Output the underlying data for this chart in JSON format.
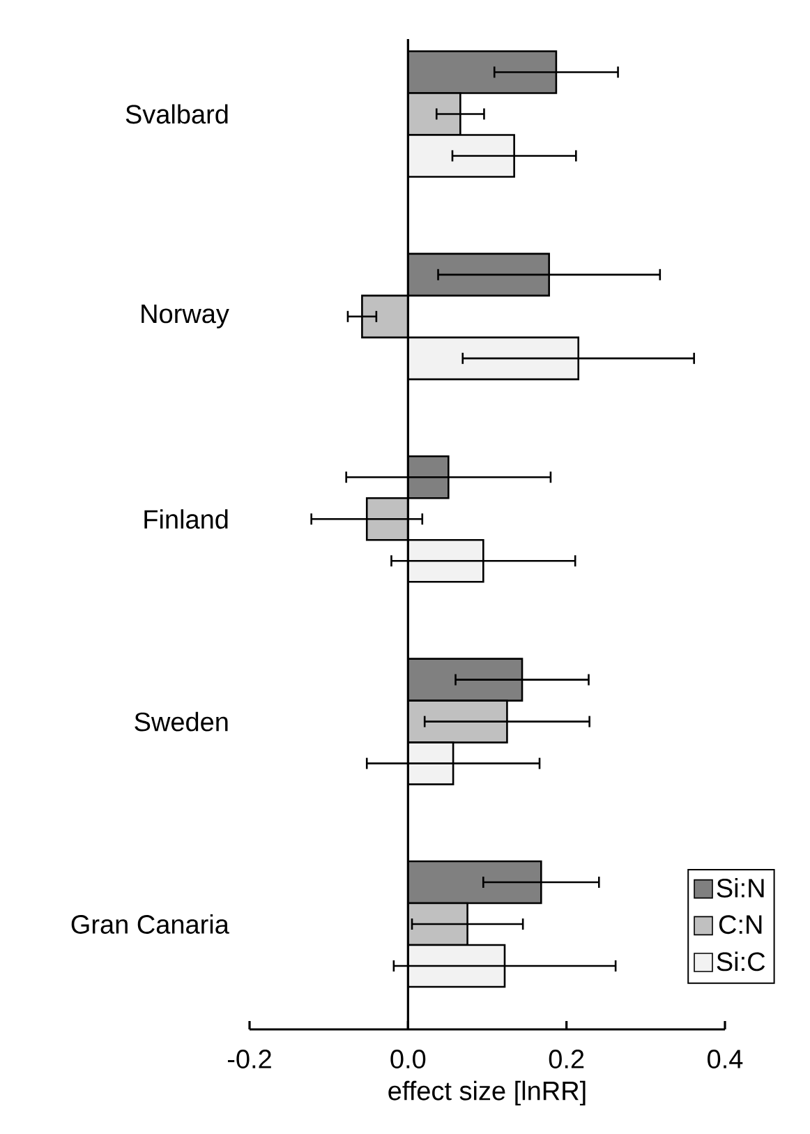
{
  "chart_data": {
    "type": "bar",
    "orientation": "horizontal",
    "xlabel": "effect size [lnRR]",
    "categories": [
      "Svalbard",
      "Norway",
      "Finland",
      "Sweden",
      "Gran Canaria"
    ],
    "series": [
      {
        "name": "Si:N",
        "color": "#808080",
        "values": [
          0.187,
          0.178,
          0.051,
          0.144,
          0.168
        ],
        "errors": [
          0.078,
          0.14,
          0.129,
          0.084,
          0.073
        ]
      },
      {
        "name": "C:N",
        "color": "#c0c0c0",
        "values": [
          0.066,
          -0.058,
          -0.052,
          0.125,
          0.075
        ],
        "errors": [
          0.03,
          0.018,
          0.07,
          0.104,
          0.07
        ]
      },
      {
        "name": "Si:C",
        "color": "#f2f2f2",
        "values": [
          0.134,
          0.215,
          0.095,
          0.057,
          0.122
        ],
        "errors": [
          0.078,
          0.146,
          0.116,
          0.109,
          0.14
        ]
      }
    ],
    "xlim": [
      -0.2,
      0.4
    ],
    "xticks": [
      -0.2,
      {
        "value": 0,
        "label": "0.0"
      },
      0.2,
      0.4
    ],
    "legend": "bottom right"
  }
}
